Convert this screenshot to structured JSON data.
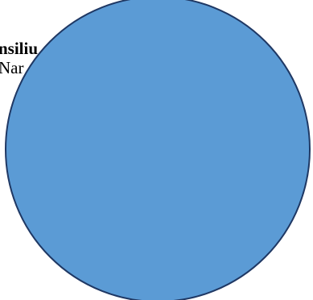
{
  "document": {
    "line_1": "nsiliu",
    "line_2": "Nar"
  },
  "shape": {
    "type": "circle",
    "fill_color": "#5b9bd5",
    "stroke_color": "#1f3864"
  }
}
